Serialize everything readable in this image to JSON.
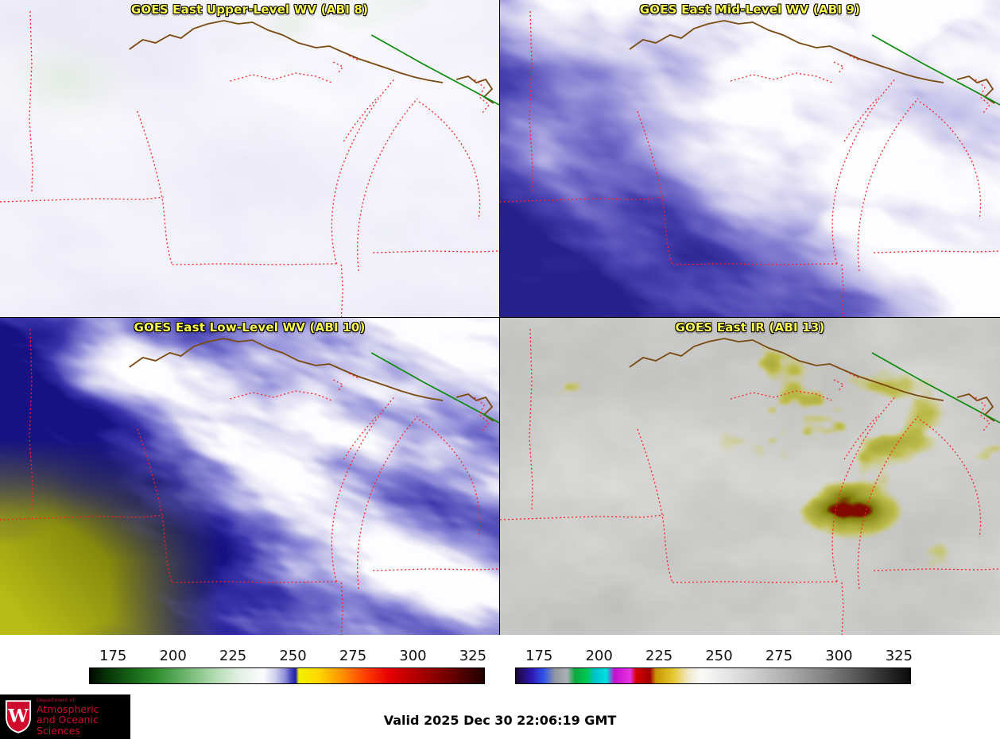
{
  "colors": {
    "title_text": "#ffff4d",
    "border_red": "#ff2020",
    "border_green": "#0a8a0a",
    "border_brown": "#7a4a10",
    "uw_red": "#cf0a2c",
    "logo_bg": "#000000",
    "page_bg": "#ffffff"
  },
  "panels": [
    {
      "id": "abi8",
      "title": "GOES East Upper-Level WV (ABI 8)"
    },
    {
      "id": "abi9",
      "title": "GOES East Mid-Level WV (ABI 9)"
    },
    {
      "id": "abi10",
      "title": "GOES East Low-Level WV (ABI 10)"
    },
    {
      "id": "abi13",
      "title": "GOES East IR (ABI 13)"
    }
  ],
  "colorbars": [
    {
      "id": "wv-colorbar",
      "range": [
        165,
        330
      ],
      "ticks": [
        175,
        200,
        225,
        250,
        275,
        300,
        325
      ],
      "stops": [
        [
          "#000800",
          0
        ],
        [
          "#073007",
          4
        ],
        [
          "#156015",
          10
        ],
        [
          "#2f8f2f",
          17
        ],
        [
          "#74b874",
          25
        ],
        [
          "#b4dcb4",
          32
        ],
        [
          "#e4f0e4",
          38
        ],
        [
          "#fbfbff",
          44
        ],
        [
          "#d0d0ee",
          47
        ],
        [
          "#9090d8",
          49.5
        ],
        [
          "#4848c0",
          51
        ],
        [
          "#2020a8",
          52.2
        ],
        [
          "#f2f200",
          53
        ],
        [
          "#ffd800",
          58
        ],
        [
          "#ff9000",
          64
        ],
        [
          "#ff3c00",
          70
        ],
        [
          "#e60000",
          76
        ],
        [
          "#b00000",
          83
        ],
        [
          "#700000",
          91
        ],
        [
          "#200000",
          100
        ]
      ]
    },
    {
      "id": "ir-colorbar",
      "range": [
        165,
        330
      ],
      "ticks": [
        175,
        200,
        225,
        250,
        275,
        300,
        325
      ],
      "stops": [
        [
          "#1c0636",
          0
        ],
        [
          "#2d18b4",
          4
        ],
        [
          "#2f52e8",
          7
        ],
        [
          "#9298a0",
          10
        ],
        [
          "#aab0b4",
          13
        ],
        [
          "#0aa83c",
          15
        ],
        [
          "#00c853",
          18
        ],
        [
          "#00c2cc",
          20
        ],
        [
          "#00e0e0",
          23
        ],
        [
          "#c410cc",
          25
        ],
        [
          "#e632e0",
          29
        ],
        [
          "#d40000",
          30.5
        ],
        [
          "#a00000",
          34
        ],
        [
          "#c89600",
          35.5
        ],
        [
          "#e6c832",
          40
        ],
        [
          "#f0ead2",
          44
        ],
        [
          "#fafaf8",
          47
        ],
        [
          "#e4e4e4",
          54
        ],
        [
          "#c8c8c8",
          62
        ],
        [
          "#a8a8a8",
          70
        ],
        [
          "#848484",
          78
        ],
        [
          "#5a5a5a",
          86
        ],
        [
          "#303030",
          93
        ],
        [
          "#0a0a0a",
          100
        ]
      ]
    }
  ],
  "footer": {
    "valid": "Valid 2025 Dec 30 22:06:19 GMT",
    "logo": {
      "department_of": "Department of",
      "line1": "Atmospheric",
      "line2": "and Oceanic Sciences"
    }
  }
}
